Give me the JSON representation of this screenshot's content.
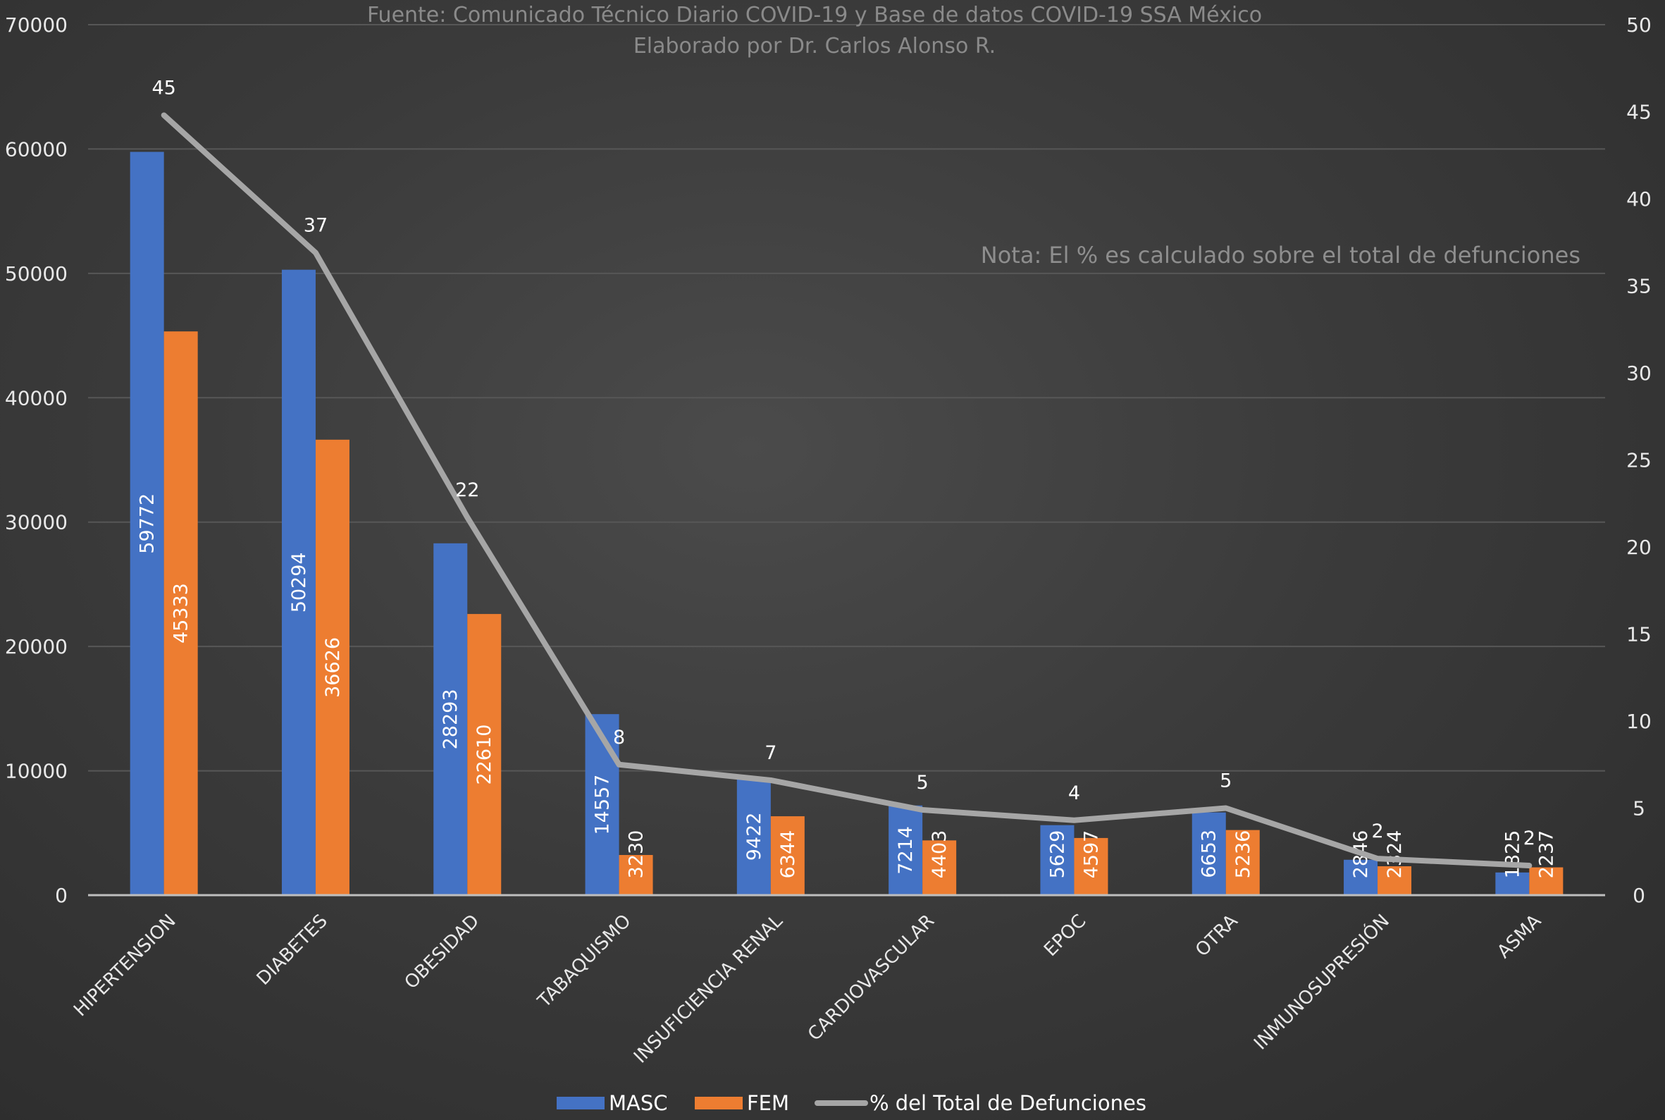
{
  "header": {
    "source_line": "Fuente: Comunicado Técnico Diario COVID-19 y Base de datos COVID-19 SSA México",
    "author_line": "Elaborado por Dr. Carlos Alonso R."
  },
  "note": "Nota: El % es calculado sobre el total de defunciones",
  "colors": {
    "masc": "#4472c4",
    "fem": "#ed7d31",
    "line": "#a6a6a6",
    "grid": "#575757",
    "axis": "#bfbfbf"
  },
  "chart_data": {
    "type": "bar",
    "categories": [
      "HIPERTENSION",
      "DIABETES",
      "OBESIDAD",
      "TABAQUISMO",
      "INSUFICIENCIA RENAL",
      "CARDIOVASCULAR",
      "EPOC",
      "OTRA",
      "INMUNOSUPRESIÓN",
      "ASMA"
    ],
    "series": [
      {
        "name": "MASC",
        "values": [
          59772,
          50294,
          28293,
          14557,
          9422,
          7214,
          5629,
          6653,
          2846,
          1825
        ]
      },
      {
        "name": "FEM",
        "values": [
          45333,
          36626,
          22610,
          3230,
          6344,
          4403,
          4597,
          5236,
          2324,
          2237
        ]
      }
    ],
    "line_series": {
      "name": "% del Total de Defunciones",
      "values": [
        45,
        37,
        22,
        8,
        7,
        5,
        4,
        5,
        2,
        2
      ],
      "plotted_values": [
        44.8,
        36.9,
        21.7,
        7.5,
        6.6,
        4.9,
        4.3,
        5.0,
        2.1,
        1.7
      ]
    },
    "y_left": {
      "min": 0,
      "max": 70000,
      "ticks": [
        0,
        10000,
        20000,
        30000,
        40000,
        50000,
        60000,
        70000
      ]
    },
    "y_right": {
      "min": 0,
      "max": 50,
      "ticks": [
        0,
        5,
        10,
        15,
        20,
        25,
        30,
        35,
        40,
        45,
        50
      ]
    },
    "grid": true,
    "legend_position": "bottom"
  }
}
